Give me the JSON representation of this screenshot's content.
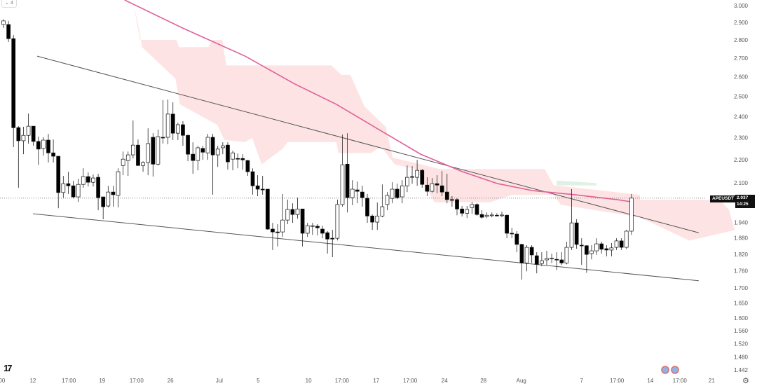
{
  "toolbar": {
    "collapse_label": "⌄ 4"
  },
  "symbol": "APEUSDT",
  "last_price": "2.037",
  "countdown": "14:25",
  "colors": {
    "up_body": "#ffffff",
    "down_body": "#000000",
    "wick": "#222222",
    "ma": "#e0609a",
    "cloud_bear": "#fde3e3",
    "cloud_bull": "#dff1e3",
    "trendline": "#555555"
  },
  "chart_data": {
    "type": "candlestick",
    "title": "",
    "y_scale": "log",
    "y_range": [
      1.442,
      3.0
    ],
    "x_unit": "bar index",
    "y_ticks": [
      "3.000",
      "2.900",
      "2.800",
      "2.700",
      "2.600",
      "2.500",
      "2.400",
      "2.300",
      "2.200",
      "2.100",
      "1.940",
      "1.880",
      "1.820",
      "1.760",
      "1.700",
      "1.650",
      "1.600",
      "1.560",
      "1.520",
      "1.480",
      "1.442"
    ],
    "x_ticks": [
      {
        "label": "00",
        "bar": -0.3
      },
      {
        "label": "12",
        "bar": 5.9
      },
      {
        "label": "17:00",
        "bar": 13.1
      },
      {
        "label": "19",
        "bar": 19.8
      },
      {
        "label": "17:00",
        "bar": 26.7
      },
      {
        "label": "26",
        "bar": 33.5
      },
      {
        "label": "Jul",
        "bar": 43.3
      },
      {
        "label": "5",
        "bar": 51.1
      },
      {
        "label": "10",
        "bar": 61.2
      },
      {
        "label": "17:00",
        "bar": 67.9
      },
      {
        "label": "17",
        "bar": 74.8
      },
      {
        "label": "17:00",
        "bar": 81.6
      },
      {
        "label": "24",
        "bar": 88.5
      },
      {
        "label": "28",
        "bar": 96.3
      },
      {
        "label": "Aug",
        "bar": 103.9
      },
      {
        "label": "7",
        "bar": 116.0
      },
      {
        "label": "17:00",
        "bar": 123.1
      },
      {
        "label": "14",
        "bar": 129.8
      },
      {
        "label": "17:00",
        "bar": 135.7
      },
      {
        "label": "21",
        "bar": 142.1
      }
    ],
    "candles_ohlc": [
      [
        2.888,
        2.918,
        2.868,
        2.909
      ],
      [
        2.888,
        2.909,
        2.788,
        2.807
      ],
      [
        2.807,
        2.827,
        2.257,
        2.347
      ],
      [
        2.347,
        2.354,
        2.08,
        2.286
      ],
      [
        2.286,
        2.351,
        2.225,
        2.311
      ],
      [
        2.311,
        2.415,
        2.273,
        2.354
      ],
      [
        2.354,
        2.354,
        2.263,
        2.283
      ],
      [
        2.283,
        2.305,
        2.178,
        2.248
      ],
      [
        2.251,
        2.302,
        2.219,
        2.289
      ],
      [
        2.289,
        2.318,
        2.188,
        2.231
      ],
      [
        2.231,
        2.292,
        2.188,
        2.216
      ],
      [
        2.216,
        2.216,
        1.996,
        2.06
      ],
      [
        2.06,
        2.13,
        2.039,
        2.097
      ],
      [
        2.097,
        2.148,
        2.054,
        2.088
      ],
      [
        2.088,
        2.109,
        2.036,
        2.042
      ],
      [
        2.042,
        2.118,
        2.022,
        2.094
      ],
      [
        2.094,
        2.163,
        2.08,
        2.127
      ],
      [
        2.127,
        2.145,
        2.085,
        2.103
      ],
      [
        2.103,
        2.136,
        2.085,
        2.121
      ],
      [
        2.124,
        2.139,
        1.988,
        2.039
      ],
      [
        2.042,
        2.042,
        1.952,
        2.002
      ],
      [
        2.005,
        2.088,
        1.999,
        2.062
      ],
      [
        2.062,
        2.088,
        2.002,
        2.051
      ],
      [
        2.048,
        2.163,
        1.999,
        2.148
      ],
      [
        2.175,
        2.237,
        2.133,
        2.203
      ],
      [
        2.197,
        2.237,
        2.13,
        2.222
      ],
      [
        2.222,
        2.381,
        2.206,
        2.266
      ],
      [
        2.266,
        2.292,
        2.175,
        2.175
      ],
      [
        2.175,
        2.194,
        2.148,
        2.188
      ],
      [
        2.188,
        2.344,
        2.133,
        2.273
      ],
      [
        2.302,
        2.321,
        2.127,
        2.181
      ],
      [
        2.181,
        2.338,
        2.175,
        2.305
      ],
      [
        2.302,
        2.481,
        2.273,
        2.299
      ],
      [
        2.302,
        2.484,
        2.27,
        2.412
      ],
      [
        2.412,
        2.47,
        2.289,
        2.321
      ],
      [
        2.321,
        2.371,
        2.289,
        2.361
      ],
      [
        2.361,
        2.378,
        2.263,
        2.311
      ],
      [
        2.311,
        2.315,
        2.194,
        2.225
      ],
      [
        2.225,
        2.279,
        2.139,
        2.197
      ],
      [
        2.197,
        2.263,
        2.154,
        2.254
      ],
      [
        2.251,
        2.263,
        2.2,
        2.234
      ],
      [
        2.231,
        2.318,
        2.2,
        2.302
      ],
      [
        2.302,
        2.318,
        2.051,
        2.222
      ],
      [
        2.222,
        2.263,
        2.169,
        2.248
      ],
      [
        2.254,
        2.279,
        2.225,
        2.263
      ],
      [
        2.266,
        2.279,
        2.157,
        2.191
      ],
      [
        2.203,
        2.241,
        2.154,
        2.231
      ],
      [
        2.206,
        2.228,
        2.163,
        2.203
      ],
      [
        2.206,
        2.225,
        2.157,
        2.2
      ],
      [
        2.197,
        2.2,
        2.13,
        2.148
      ],
      [
        2.148,
        2.163,
        2.051,
        2.088
      ],
      [
        2.088,
        2.133,
        2.045,
        2.074
      ],
      [
        2.074,
        2.13,
        2.051,
        2.071
      ],
      [
        2.074,
        2.074,
        1.911,
        1.914
      ],
      [
        1.914,
        1.938,
        1.835,
        1.903
      ],
      [
        1.903,
        1.933,
        1.848,
        1.9
      ],
      [
        1.903,
        2.054,
        1.884,
        1.949
      ],
      [
        1.949,
        2.031,
        1.933,
        1.991
      ],
      [
        1.991,
        2.016,
        1.938,
        1.971
      ],
      [
        1.971,
        2.039,
        1.955,
        1.993
      ],
      [
        1.993,
        1.993,
        1.848,
        1.898
      ],
      [
        1.898,
        1.938,
        1.884,
        1.927
      ],
      [
        1.925,
        1.938,
        1.892,
        1.927
      ],
      [
        1.925,
        1.933,
        1.89,
        1.919
      ],
      [
        1.914,
        1.927,
        1.879,
        1.898
      ],
      [
        1.9,
        1.906,
        1.822,
        1.876
      ],
      [
        1.879,
        1.911,
        1.809,
        1.876
      ],
      [
        1.879,
        2.031,
        1.871,
        2.011
      ],
      [
        2.011,
        2.315,
        2.002,
        2.178
      ],
      [
        2.181,
        2.321,
        1.979,
        2.039
      ],
      [
        2.039,
        2.112,
        2.008,
        2.074
      ],
      [
        2.071,
        2.106,
        2.016,
        2.065
      ],
      [
        2.062,
        2.088,
        2.002,
        2.039
      ],
      [
        2.036,
        2.054,
        1.938,
        1.965
      ],
      [
        1.965,
        1.971,
        1.911,
        1.941
      ],
      [
        1.941,
        2.019,
        1.911,
        1.965
      ],
      [
        1.965,
        2.094,
        1.96,
        2.002
      ],
      [
        2.011,
        2.062,
        1.988,
        2.048
      ],
      [
        2.036,
        2.103,
        2.016,
        2.074
      ],
      [
        2.074,
        2.097,
        2.033,
        2.039
      ],
      [
        2.042,
        2.112,
        2.016,
        2.088
      ],
      [
        2.088,
        2.175,
        2.062,
        2.124
      ],
      [
        2.127,
        2.172,
        2.097,
        2.124
      ],
      [
        2.124,
        2.2,
        2.088,
        2.154
      ],
      [
        2.154,
        2.16,
        2.08,
        2.094
      ],
      [
        2.091,
        2.124,
        2.045,
        2.065
      ],
      [
        2.065,
        2.121,
        2.06,
        2.097
      ],
      [
        2.097,
        2.133,
        2.057,
        2.091
      ],
      [
        2.088,
        2.151,
        2.045,
        2.062
      ],
      [
        2.062,
        2.139,
        2.016,
        2.031
      ],
      [
        2.031,
        2.045,
        2.002,
        2.028
      ],
      [
        2.031,
        2.036,
        1.968,
        1.993
      ],
      [
        1.993,
        2.005,
        1.963,
        1.976
      ],
      [
        1.976,
        2.005,
        1.957,
        1.991
      ],
      [
        1.999,
        2.022,
        1.974,
        2.011
      ],
      [
        2.011,
        2.016,
        1.966,
        1.971
      ],
      [
        1.971,
        1.988,
        1.955,
        1.96
      ],
      [
        1.963,
        1.979,
        1.957,
        1.968
      ],
      [
        1.968,
        1.979,
        1.96,
        1.969
      ],
      [
        1.968,
        1.976,
        1.963,
        1.967
      ],
      [
        1.968,
        1.982,
        1.96,
        1.969
      ],
      [
        1.968,
        1.971,
        1.879,
        1.898
      ],
      [
        1.898,
        1.919,
        1.879,
        1.897
      ],
      [
        1.895,
        1.906,
        1.827,
        1.856
      ],
      [
        1.856,
        1.858,
        1.729,
        1.788
      ],
      [
        1.788,
        1.853,
        1.758,
        1.845
      ],
      [
        1.845,
        1.853,
        1.788,
        1.817
      ],
      [
        1.814,
        1.827,
        1.751,
        1.783
      ],
      [
        1.786,
        1.827,
        1.776,
        1.796
      ],
      [
        1.799,
        1.832,
        1.781,
        1.804
      ],
      [
        1.804,
        1.822,
        1.788,
        1.805
      ],
      [
        1.801,
        1.827,
        1.763,
        1.799
      ],
      [
        1.799,
        1.827,
        1.781,
        1.788
      ],
      [
        1.788,
        1.866,
        1.783,
        1.845
      ],
      [
        1.845,
        2.074,
        1.835,
        1.938
      ],
      [
        1.938,
        1.952,
        1.84,
        1.856
      ],
      [
        1.853,
        1.879,
        1.781,
        1.851
      ],
      [
        1.851,
        1.853,
        1.753,
        1.819
      ],
      [
        1.822,
        1.853,
        1.801,
        1.832
      ],
      [
        1.832,
        1.879,
        1.817,
        1.858
      ],
      [
        1.858,
        1.866,
        1.822,
        1.838
      ],
      [
        1.84,
        1.853,
        1.812,
        1.835
      ],
      [
        1.835,
        1.861,
        1.812,
        1.843
      ],
      [
        1.845,
        1.879,
        1.835,
        1.869
      ],
      [
        1.869,
        1.879,
        1.835,
        1.845
      ],
      [
        1.845,
        1.911,
        1.838,
        1.906
      ],
      [
        1.906,
        2.054,
        1.892,
        2.037
      ]
    ],
    "moving_average": [
      [
        24.3,
        3.034
      ],
      [
        35.9,
        2.868
      ],
      [
        48.5,
        2.71
      ],
      [
        58.4,
        2.563
      ],
      [
        66.8,
        2.46
      ],
      [
        75.2,
        2.34
      ],
      [
        83.7,
        2.225
      ],
      [
        92.1,
        2.148
      ],
      [
        99.2,
        2.097
      ],
      [
        106.2,
        2.068
      ],
      [
        114.6,
        2.051
      ],
      [
        123.1,
        2.031
      ],
      [
        125.9,
        2.022
      ]
    ],
    "trendlines": [
      {
        "name": "upper",
        "from": [
          6.75,
          2.71
        ],
        "to": [
          139.5,
          1.9
        ]
      },
      {
        "name": "lower",
        "from": [
          5.9,
          1.974
        ],
        "to": [
          139.5,
          1.725
        ]
      }
    ],
    "cloud_bear": [
      [
        26.0,
        3.02
      ],
      [
        27.4,
        2.8
      ],
      [
        34.7,
        2.8
      ],
      [
        35.2,
        2.76
      ],
      [
        41.1,
        2.76
      ],
      [
        41.8,
        2.8
      ],
      [
        43.9,
        2.8
      ],
      [
        44.7,
        2.66
      ],
      [
        65.8,
        2.66
      ],
      [
        67.8,
        2.61
      ],
      [
        69.6,
        2.61
      ],
      [
        72.4,
        2.45
      ],
      [
        76.7,
        2.35
      ],
      [
        78.1,
        2.21
      ],
      [
        87.5,
        2.16
      ],
      [
        108.6,
        2.16
      ],
      [
        110.4,
        2.09
      ],
      [
        119.3,
        2.07
      ],
      [
        127.7,
        2.05
      ],
      [
        127.7,
        2.03
      ],
      [
        143.7,
        2.03
      ],
      [
        145.6,
        1.99
      ],
      [
        146.7,
        1.91
      ],
      [
        137.6,
        1.87
      ],
      [
        134.3,
        1.9
      ],
      [
        127.7,
        1.96
      ],
      [
        111.8,
        2.01
      ],
      [
        110.4,
        2.05
      ],
      [
        102.0,
        2.05
      ],
      [
        97.7,
        2.02
      ],
      [
        86.5,
        2.02
      ],
      [
        82.7,
        2.16
      ],
      [
        78.5,
        2.18
      ],
      [
        75.7,
        2.26
      ],
      [
        73.8,
        2.23
      ],
      [
        67.2,
        2.23
      ],
      [
        66.8,
        2.28
      ],
      [
        57.0,
        2.28
      ],
      [
        56.0,
        2.25
      ],
      [
        51.8,
        2.18
      ],
      [
        49.9,
        2.3
      ],
      [
        48.5,
        2.28
      ],
      [
        44.3,
        2.29
      ],
      [
        42.9,
        2.36
      ],
      [
        35.4,
        2.46
      ],
      [
        34.5,
        2.59
      ],
      [
        27.8,
        2.76
      ],
      [
        27.0,
        2.89
      ]
    ],
    "cloud_bull": [
      [
        111.0,
        2.11
      ],
      [
        119.0,
        2.1
      ],
      [
        119.0,
        2.09
      ],
      [
        111.0,
        2.09
      ]
    ],
    "last_price_line": 2.037
  }
}
